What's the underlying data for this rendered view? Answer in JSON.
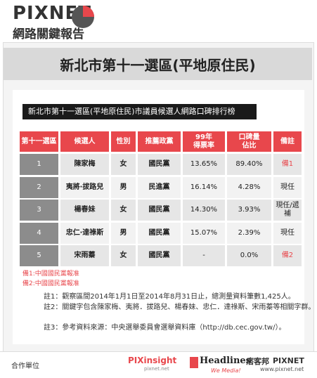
{
  "header": {
    "brand": "PIXNET",
    "subtitle": "網路關鍵報告"
  },
  "title": "新北市第十一選區(平地原住民)",
  "table": {
    "caption": "新北市第十一選區(平地原住民)市議員候選人網路口碑排行榜",
    "columns": [
      [
        "第十一選區"
      ],
      [
        "候選人"
      ],
      [
        "性別"
      ],
      [
        "推薦政黨"
      ],
      [
        "99年",
        "得票率"
      ],
      [
        "口碑量",
        "佔比"
      ],
      [
        "備註"
      ]
    ],
    "rows": [
      [
        "1",
        "陳家梅",
        "女",
        "國民黨",
        "13.65%",
        "89.40%",
        "備1"
      ],
      [
        "2",
        "夷將‧拔路兒",
        "男",
        "民進黨",
        "16.14%",
        "4.28%",
        "現任"
      ],
      [
        "3",
        "楊春妹",
        "女",
        "國民黨",
        "14.30%",
        "3.93%",
        "現任/遞補"
      ],
      [
        "4",
        "忠仁‧達祿斯",
        "男",
        "國民黨",
        "15.07%",
        "2.39%",
        "現任"
      ],
      [
        "5",
        "宋雨蓁",
        "女",
        "國民黨",
        "-",
        "0.0%",
        "備2"
      ]
    ],
    "remark_red_rows": [
      0,
      4
    ]
  },
  "legend": [
    "備1:中國國民黨報准",
    "備2:中國國民黨報准"
  ],
  "notes": [
    "註1：觀察區間2014年1月1日至2014年8月31日止，總測量資料筆數1,425人。",
    "註2：關鍵字包含陳家梅、夷將．拔路兒、楊春妹、忠仁．達祿斯、宋雨蓁等相關字群。",
    "註3：參考資料來源：中央選舉委員會選舉資料庫（http://db.cec.gov.tw/）。"
  ],
  "footer": {
    "label": "合作單位",
    "partners": [
      "PIXinsight",
      "pixnet.net",
      "Headlines",
      "We Media!",
      "痞客邦",
      "PIXNET",
      "www.pixnet.net"
    ]
  }
}
